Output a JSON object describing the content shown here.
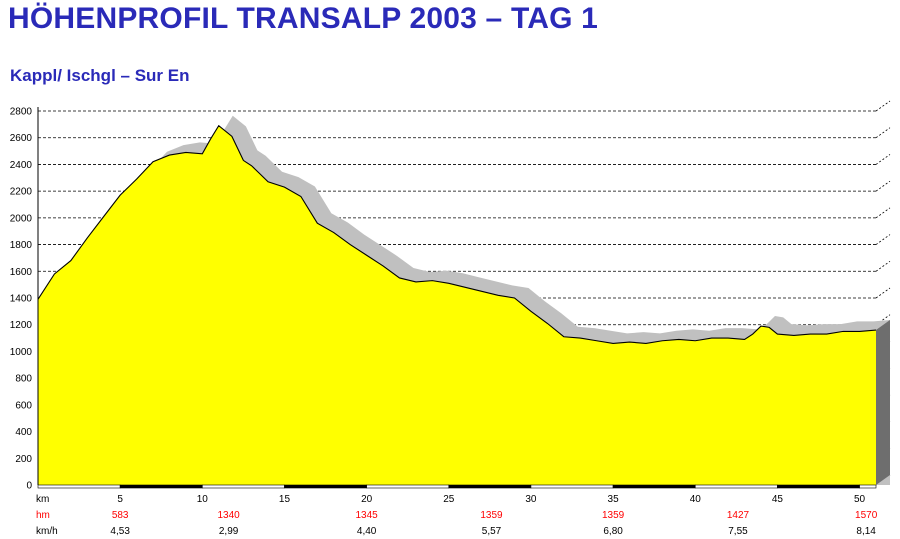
{
  "header": {
    "title": "HÖHENPROFIL TRANSALP 2003 – TAG 1",
    "subtitle": "Kappl/ Ischgl – Sur En"
  },
  "chart_data": {
    "type": "area",
    "title": "HÖHENPROFIL TRANSALP 2003 – TAG 1",
    "subtitle": "Kappl/ Ischgl – Sur En",
    "xlabel": "km",
    "ylabel": "",
    "xlim": [
      0,
      51
    ],
    "ylim": [
      0,
      2800
    ],
    "x_ticks": [
      5,
      10,
      15,
      20,
      25,
      30,
      35,
      40,
      45,
      50
    ],
    "y_ticks": [
      0,
      200,
      400,
      600,
      800,
      1000,
      1200,
      1400,
      1600,
      1800,
      2000,
      2200,
      2400,
      2600,
      2800
    ],
    "grid": true,
    "colors": {
      "profile": "#ffff00",
      "depth": "#c0c0c0",
      "line": "#000000",
      "hm_row": "#ff0000"
    },
    "x": [
      0,
      1,
      2,
      3,
      4,
      5,
      6,
      7,
      8,
      9,
      10,
      10.5,
      11,
      11.8,
      12.5,
      13,
      13.5,
      14,
      15,
      16,
      17,
      18,
      19,
      20,
      21,
      22,
      23,
      24,
      25,
      26,
      27,
      28,
      29,
      30,
      31,
      32,
      33,
      34,
      35,
      36,
      37,
      38,
      39,
      40,
      41,
      42,
      43,
      43.5,
      44,
      44.5,
      45,
      46,
      47,
      48,
      49,
      50,
      51
    ],
    "elevation": [
      1390,
      1580,
      1680,
      1850,
      2010,
      2170,
      2290,
      2420,
      2470,
      2490,
      2480,
      2590,
      2690,
      2610,
      2430,
      2390,
      2330,
      2270,
      2230,
      2160,
      1960,
      1890,
      1800,
      1720,
      1640,
      1550,
      1520,
      1530,
      1510,
      1480,
      1450,
      1420,
      1400,
      1300,
      1210,
      1110,
      1100,
      1080,
      1060,
      1070,
      1060,
      1080,
      1090,
      1080,
      1100,
      1100,
      1090,
      1130,
      1190,
      1180,
      1130,
      1120,
      1130,
      1130,
      1150,
      1150,
      1160
    ],
    "summary_rows": [
      {
        "label": "km",
        "values": []
      },
      {
        "label": "hm",
        "values": [
          "583",
          "1340",
          "1345",
          "1359",
          "1359",
          "1427",
          "1570"
        ]
      },
      {
        "label": "km/h",
        "values": [
          "4,53",
          "2,99",
          "4,40",
          "5,57",
          "6,80",
          "7,55",
          "8,14"
        ]
      }
    ]
  }
}
